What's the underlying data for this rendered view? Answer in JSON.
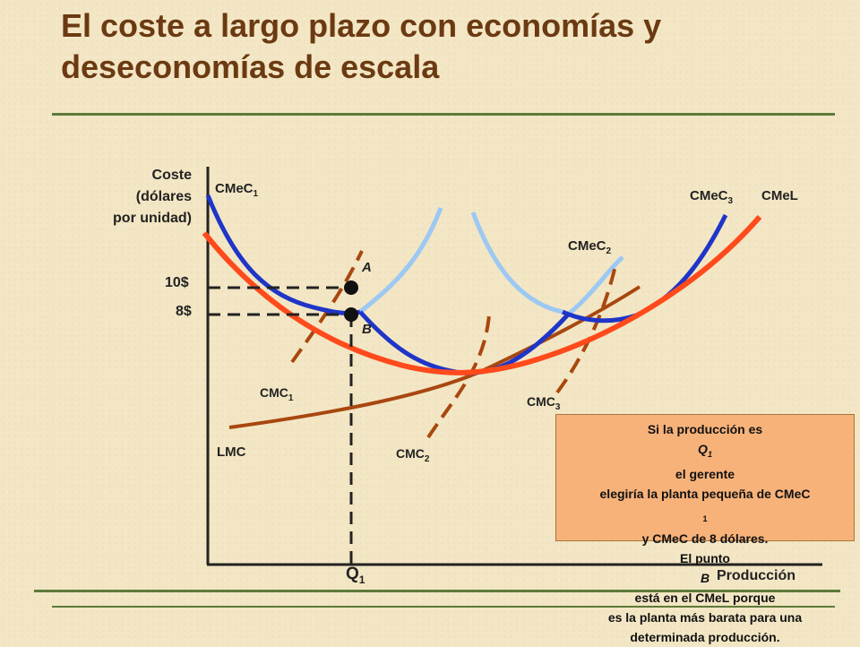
{
  "title": "El coste a largo plazo con economías y deseconomías de escala",
  "axes": {
    "y_label_lines": [
      "Coste",
      "(dólares",
      "por unidad)"
    ],
    "x_label": "Producción"
  },
  "curves": {
    "cmec1": {
      "base": "CMeC",
      "sub": "1"
    },
    "cmec2": {
      "base": "CMeC",
      "sub": "2"
    },
    "cmec3": {
      "base": "CMeC",
      "sub": "3"
    },
    "cmel": "CMeL",
    "lmc": "LMC",
    "cmc1": {
      "base": "CMC",
      "sub": "1"
    },
    "cmc2": {
      "base": "CMC",
      "sub": "2"
    },
    "cmc3": {
      "base": "CMC",
      "sub": "3"
    }
  },
  "prices": {
    "p10": "10$",
    "p8": "8$"
  },
  "points": {
    "a": "A",
    "b": "B"
  },
  "quantity": {
    "base": "Q",
    "sub": "1"
  },
  "note": {
    "line1_pre": "Si la producción es ",
    "line1_q": "Q",
    "line1_qsub": "1",
    "line1_post": " el gerente",
    "line2_pre": "elegiría la planta pequeña de CMeC",
    "line2_sub": "1",
    "line3": "y CMeC de 8 dólares.",
    "line4_pre": "El punto ",
    "line4_b": "B",
    "line4_post": " está en el CMeL porque",
    "line5": "es la planta más barata para una",
    "line6": "determinada producción."
  },
  "colors": {
    "title": "#6b3a12",
    "cmec_dark": "#1f35c8",
    "cmec_light": "#9cc8f4",
    "cmel": "#ff4a1c",
    "lmc_cmc": "#a8470f",
    "note_bg": "#f7b27a",
    "rule": "#5d7a3a"
  }
}
